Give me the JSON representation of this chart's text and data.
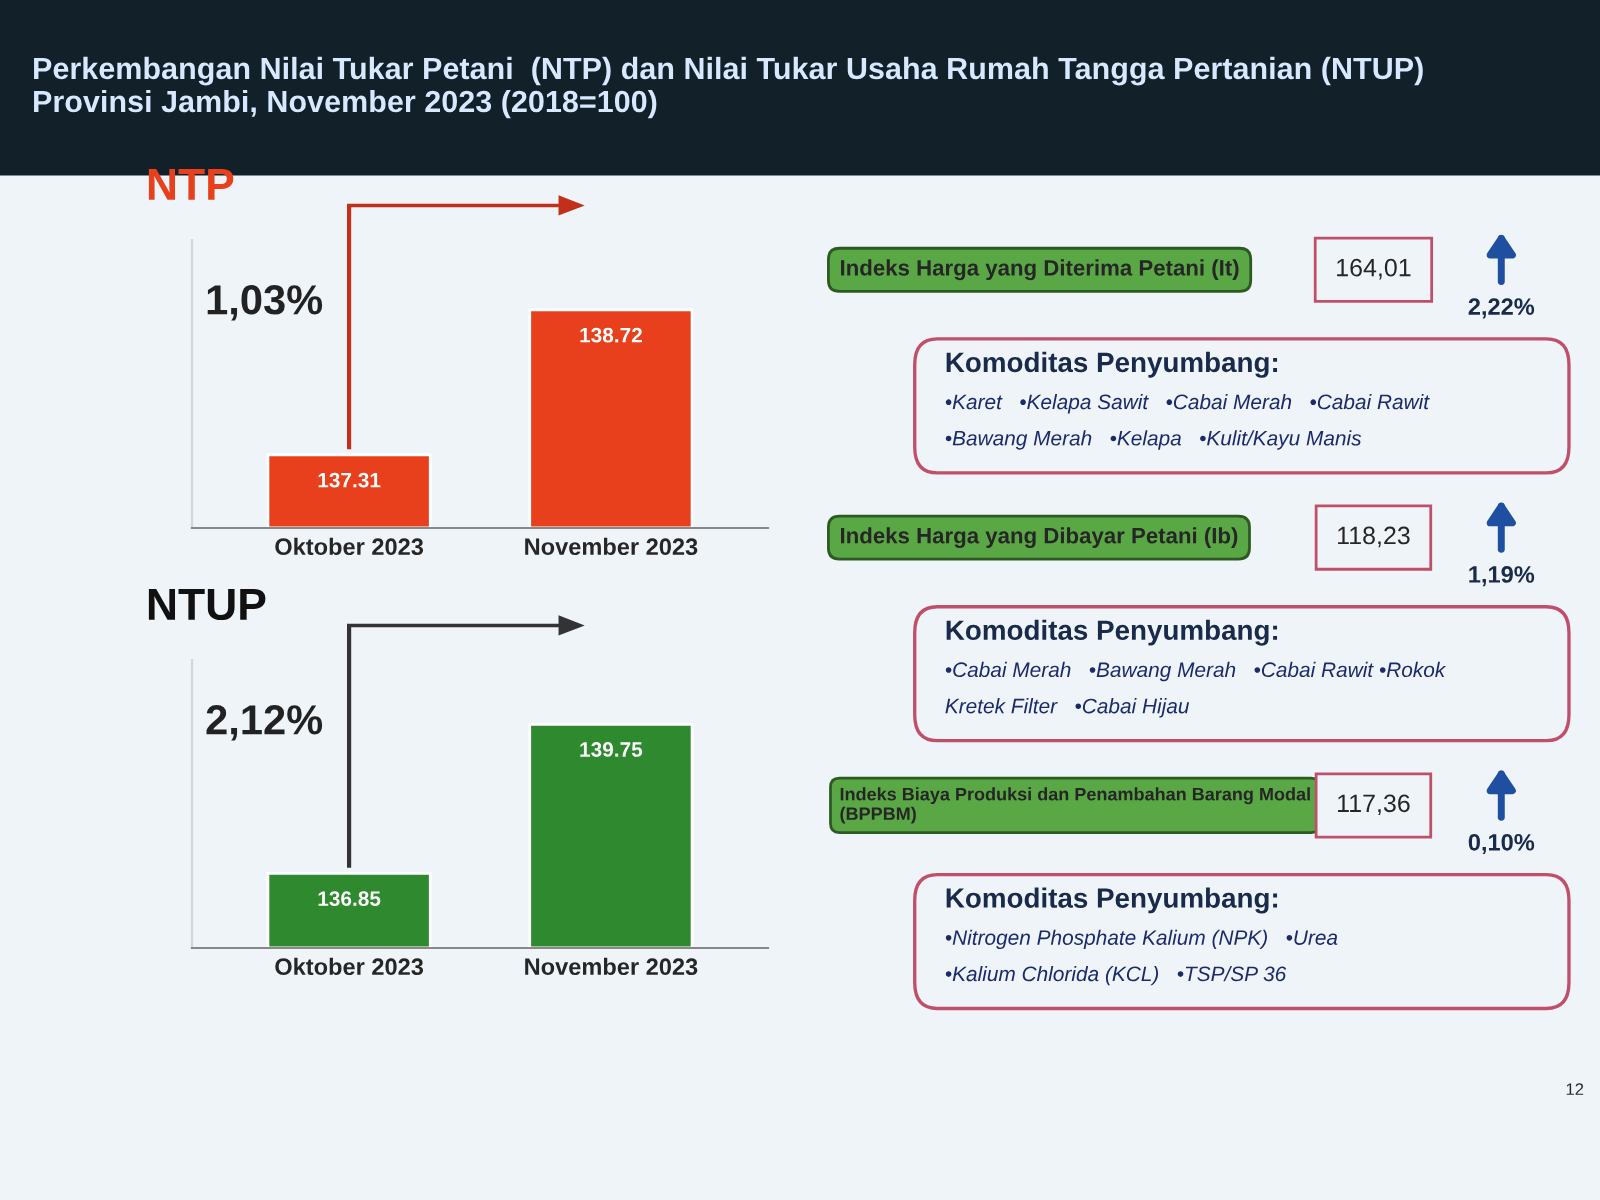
{
  "chart_data": [
    {
      "type": "other",
      "title": "Perkembangan Nilai Tukar Petani  (NTP) dan Nilai Tukar Usaha Rumah Tangga Pertanian (NTUP)\nProvinsi Jambi, November 2023 (2018=100)",
      "annotations": [
        "Indeks Harga yang Diterima Petani (It)",
        "164,01",
        "2,22%",
        "Komoditas Penyumbang:",
        "•Karet   •Kelapa Sawit   •Cabai Merah   •Cabai Rawit",
        "•Bawang Merah   •Kelapa   •Kulit/Kayu Manis",
        "Indeks Harga yang Dibayar Petani (Ib)",
        "118,23",
        "1,19%",
        "Komoditas Penyumbang:",
        "•Cabai Merah   •Bawang Merah   •Cabai Rawit •Rokok",
        "Kretek Filter   •Cabai Hijau",
        "Indeks Biaya Produksi dan Penambahan Barang Modal\n(BPPBM)",
        "117,36",
        "0,10%",
        "Komoditas Penyumbang:",
        "•Nitrogen Phosphate Kalium (NPK)   •Urea",
        "•Kalium Chlorida (KCL)   •TSP/SP 36",
        "12"
      ]
    },
    {
      "type": "bar",
      "title": "NTP",
      "categories": [
        "Oktober 2023",
        "November 2023"
      ],
      "values": [
        137.31,
        138.72
      ],
      "colors": [
        "#e8401c",
        "#e8401c"
      ],
      "ylim": [
        136.6,
        139.4
      ],
      "data_labels": true,
      "tick_labels": "x",
      "annotations": [
        "1,03%"
      ]
    },
    {
      "type": "bar",
      "title": "NTUP",
      "categories": [
        "Oktober 2023",
        "November 2023"
      ],
      "values": [
        136.85,
        139.75
      ],
      "colors": [
        "#2f8a2f",
        "#2f8a2f"
      ],
      "ylim": [
        135.4,
        141.0
      ],
      "data_labels": true,
      "tick_labels": "x",
      "annotations": [
        "2,12%"
      ]
    }
  ]
}
